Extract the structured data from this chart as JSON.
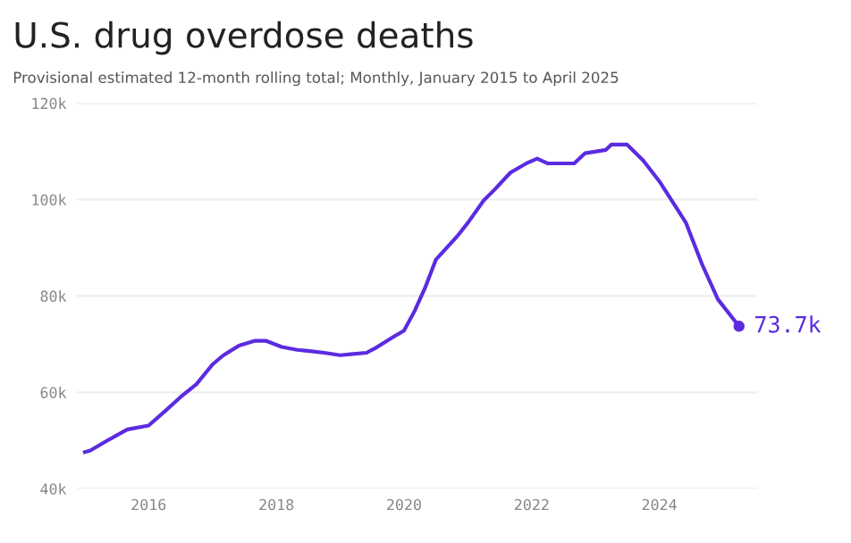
{
  "chart_data": {
    "type": "line",
    "title": "U.S. drug overdose deaths",
    "subtitle": "Provisional estimated 12-month rolling total; Monthly, January 2015 to April 2025",
    "x": [
      "2015-01",
      "2015-02",
      "2015-05",
      "2015-09",
      "2016-01",
      "2016-04",
      "2016-07",
      "2016-10",
      "2017-01",
      "2017-03",
      "2017-06",
      "2017-09",
      "2017-11",
      "2018-02",
      "2018-05",
      "2018-07",
      "2018-10",
      "2019-01",
      "2019-03",
      "2019-06",
      "2019-08",
      "2019-11",
      "2020-01",
      "2020-03",
      "2020-05",
      "2020-07",
      "2020-11",
      "2021-01",
      "2021-04",
      "2021-06",
      "2021-09",
      "2021-12",
      "2022-02",
      "2022-04",
      "2022-09",
      "2022-11",
      "2023-03",
      "2023-04",
      "2023-07",
      "2023-10",
      "2024-01",
      "2024-06",
      "2024-09",
      "2024-12",
      "2025-04"
    ],
    "series": [
      {
        "color": "#5b2be0",
        "values": [
          47.6,
          47.9,
          49.8,
          52.3,
          53.1,
          56.0,
          59.0,
          61.7,
          65.8,
          67.6,
          69.7,
          70.7,
          70.7,
          69.4,
          68.8,
          68.6,
          68.2,
          67.7,
          67.9,
          68.2,
          69.4,
          71.5,
          72.8,
          76.8,
          81.7,
          87.5,
          92.4,
          95.2,
          99.8,
          102.0,
          105.6,
          107.5,
          108.5,
          107.5,
          107.5,
          109.6,
          110.3,
          111.4,
          111.4,
          108.1,
          103.8,
          95.2,
          86.6,
          79.3,
          73.7
        ]
      }
    ],
    "xlim": [
      "2014-11-15",
      "2025-07-15"
    ],
    "xticks": [
      {
        "value": "2016-01-01",
        "label": "2016"
      },
      {
        "value": "2018-01-01",
        "label": "2018"
      },
      {
        "value": "2020-01-01",
        "label": "2020"
      },
      {
        "value": "2022-01-01",
        "label": "2022"
      },
      {
        "value": "2024-01-01",
        "label": "2024"
      }
    ],
    "ylim": [
      40,
      120
    ],
    "yticks": [
      {
        "value": 40,
        "label": "40k"
      },
      {
        "value": 60,
        "label": "60k"
      },
      {
        "value": 80,
        "label": "80k"
      },
      {
        "value": 100,
        "label": "100k"
      },
      {
        "value": 120,
        "label": "120k"
      }
    ],
    "annotations": [
      {
        "text": "73.7k",
        "x": "2025-04",
        "y": 73.7
      }
    ],
    "grid": "y",
    "legend": false
  }
}
